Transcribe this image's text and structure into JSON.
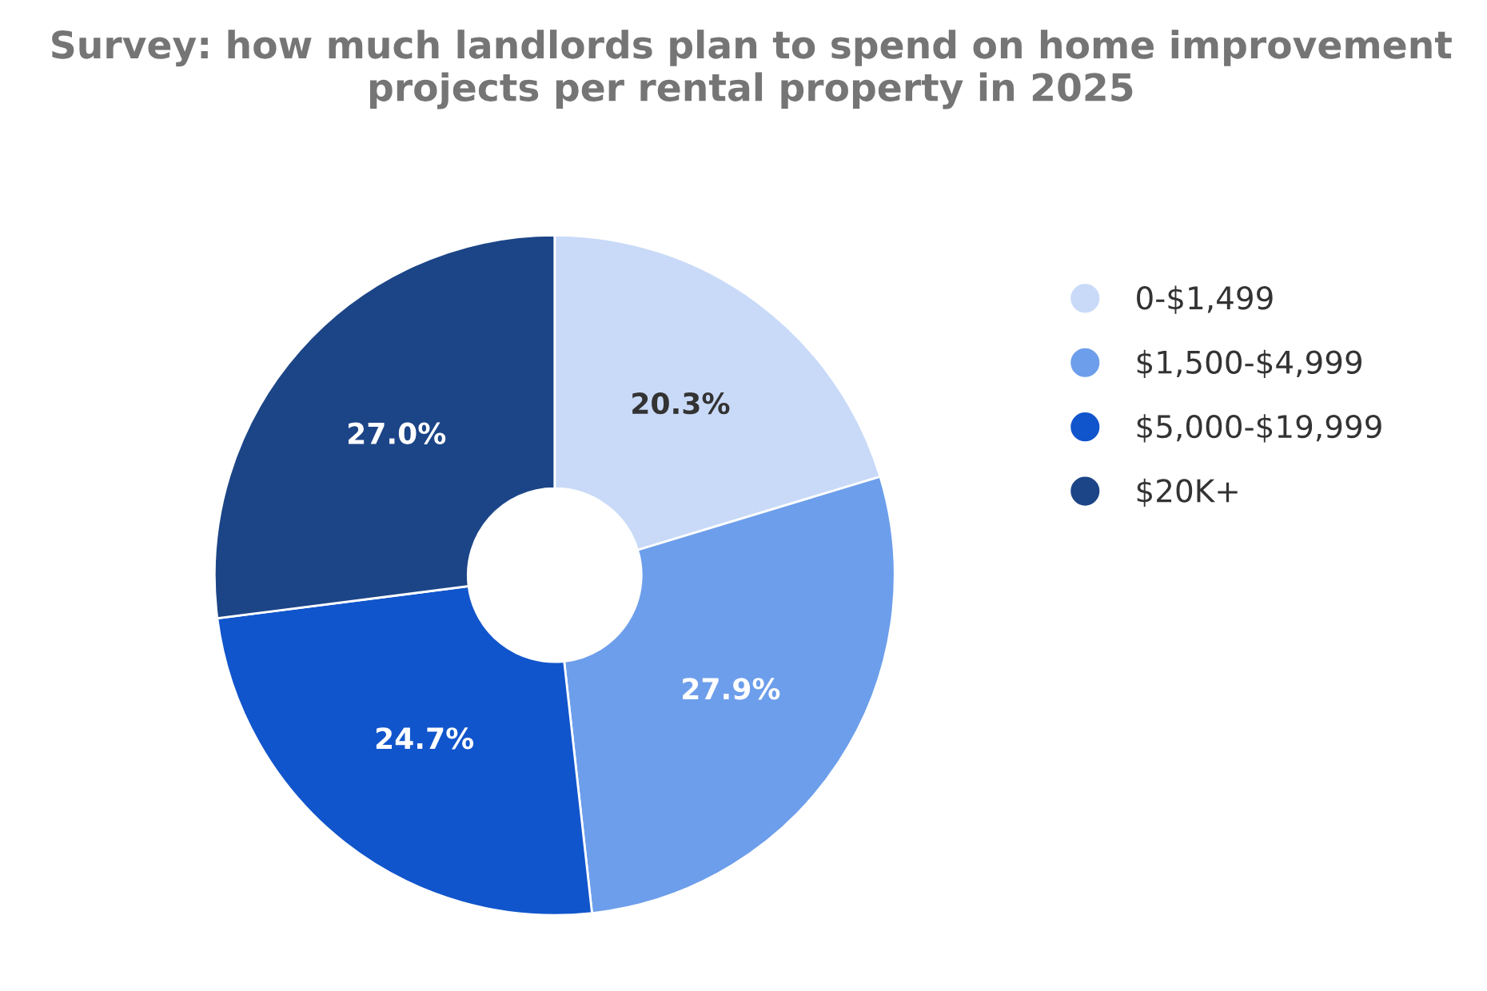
{
  "chart_data": {
    "type": "donut",
    "title": "Survey: how much landlords plan to spend on home improvement projects per rental property in 2025",
    "categories": [
      "0-$1,499",
      "$1,500-$4,999",
      "$5,000-$19,999",
      "$20K+"
    ],
    "values": [
      20.3,
      27.9,
      24.7,
      27.0
    ],
    "colors": [
      "#c9daf8",
      "#6d9eeb",
      "#1155cc",
      "#1c4587"
    ],
    "value_labels": [
      "20.3%",
      "27.9%",
      "24.7%",
      "27.0%"
    ],
    "legend": "right"
  }
}
